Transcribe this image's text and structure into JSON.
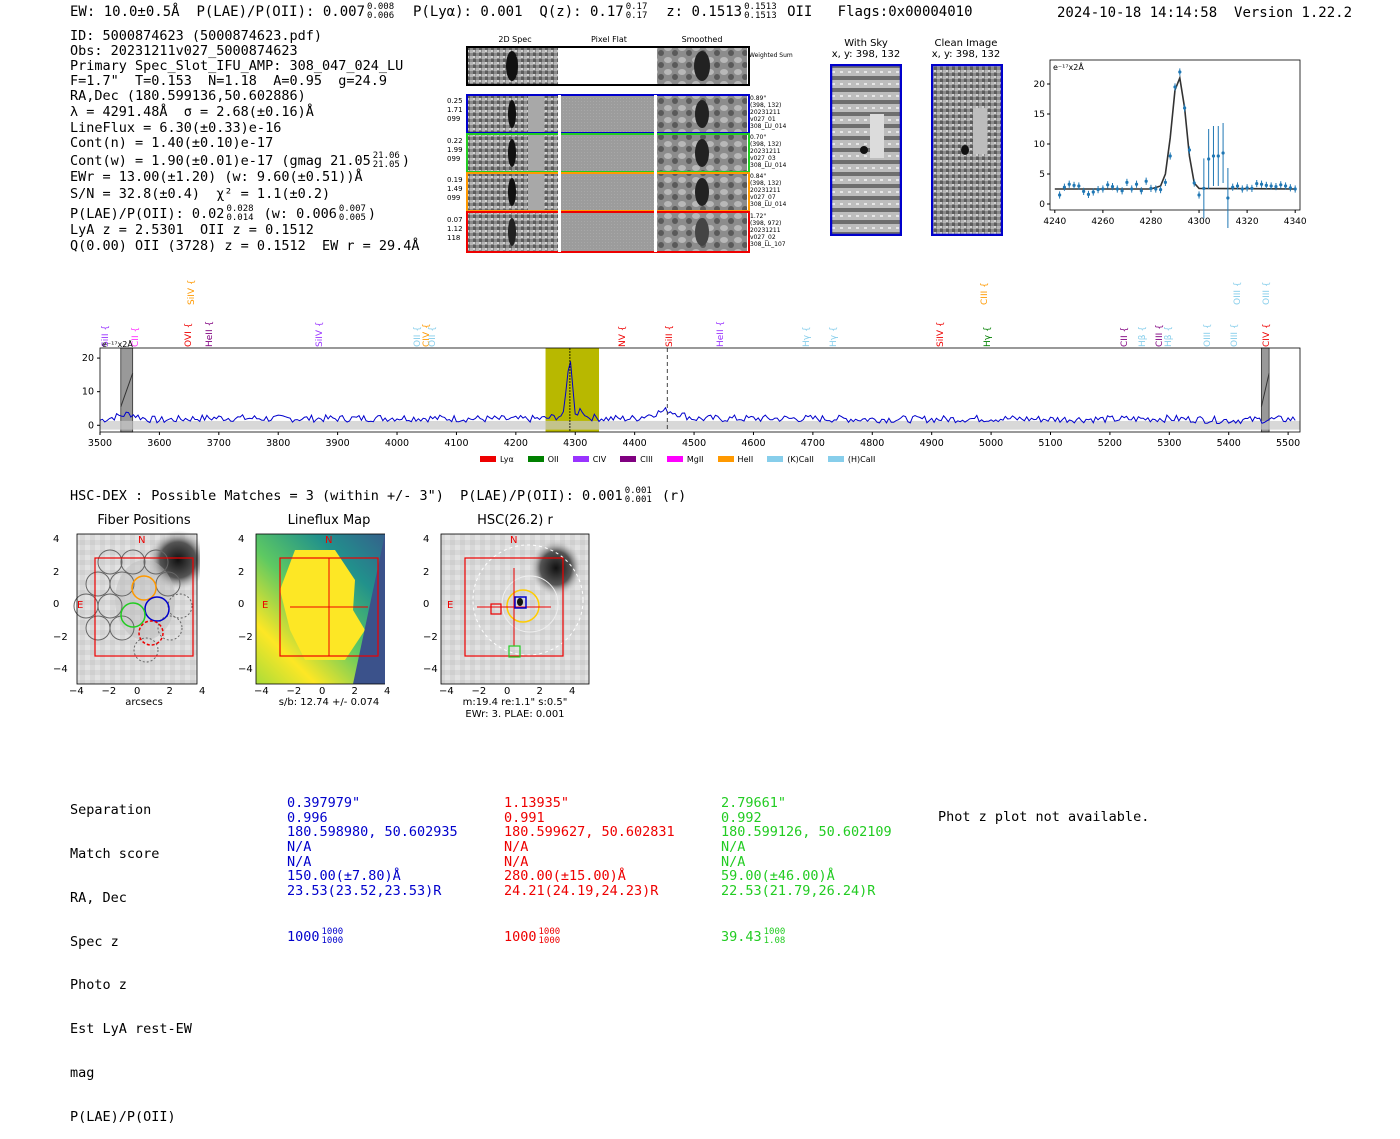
{
  "header": {
    "ew_label": "EW: 10.0±0.5Å",
    "plae_label": "P(LAE)/P(OII): 0.007",
    "plae_hi": "0.008",
    "plae_lo": "0.006",
    "plya_label": "P(Lyα): 0.001",
    "qz_label": "Q(z): 0.17",
    "qz_hi": "0.17",
    "qz_lo": "0.17",
    "z_label": "z: 0.1513",
    "z_hi": "0.1513",
    "z_lo": "0.1513",
    "z_line": "OII",
    "flags": "Flags:0x00004010",
    "datetime": "2024-10-18 14:14:58",
    "version": "Version 1.22.2"
  },
  "info": {
    "id": "ID: 5000874623 (5000874623.pdf)",
    "obs": "Obs: 20231211v027_5000874623",
    "primary": "Primary Spec_Slot_IFU_AMP: 308_047_024_LU",
    "fparams": "F=1.7\"  T=0.153  N=1.18  A=0.95  g=24.9",
    "radec": "RA,Dec (180.599136,50.602886)",
    "lambda": "λ = 4291.48Å  σ = 2.68(±0.16)Å",
    "lineflux": "LineFlux = 6.30(±0.33)e-16",
    "contn": "Cont(n) = 1.40(±0.10)e-17",
    "contw": "Cont(w) = 1.90(±0.01)e-17 (gmag 21.05",
    "contw_hi": "21.06",
    "contw_lo": "21.05",
    "contw_end": ")",
    "ewr": "EWr = 13.00(±1.20) (w: 9.60(±0.51))Å",
    "sn": "S/N = 32.8(±0.4)  χ² = 1.1(±0.2)",
    "plae": "P(LAE)/P(OII): 0.02",
    "plae_hi": "0.028",
    "plae_lo": "0.014",
    "plae_w": "(w: 0.006",
    "plae_w_hi": "0.007",
    "plae_w_lo": "0.005",
    "plae_end": ")",
    "lya": "LyA z = 2.5301  OII z = 0.1512",
    "q": "Q(0.00) OII (3728) z = 0.1512  EW r = 29.4Å"
  },
  "cutouts": {
    "col_titles": [
      "2D Spec",
      "Pixel Flat",
      "Smoothed"
    ],
    "weighted": "Weighted Sum",
    "rows": [
      {
        "left": [
          "0.25",
          "1.71",
          "099"
        ],
        "right": [
          "0.89\"",
          "(398, 132)",
          "20231211",
          "v027_01",
          "308_LU_014"
        ],
        "color": "#0000cc"
      },
      {
        "left": [
          "0.22",
          "1.99",
          "099"
        ],
        "right": [
          "0.70\"",
          "(398, 132)",
          "20231211",
          "v027_03",
          "308_LU_014"
        ],
        "color": "#22cc22"
      },
      {
        "left": [
          "0.19",
          "1.49",
          "099"
        ],
        "right": [
          "0.84\"",
          "(398, 132)",
          "20231211",
          "v027_07",
          "308_LU_014"
        ],
        "color": "#ff9900"
      },
      {
        "left": [
          "0.07",
          "1.12",
          "118"
        ],
        "right": [
          "1.72\"",
          "(398, 972)",
          "20231211",
          "v027_02",
          "308_LL_107"
        ],
        "color": "#ee0000"
      }
    ]
  },
  "sky_images": {
    "with_sky_title": "With Sky",
    "with_sky_coord": "x, y: 398, 132",
    "clean_title": "Clean Image",
    "clean_coord": "x, y: 398, 132"
  },
  "zoom_chart": {
    "unit_label": "e⁻¹⁷x2Å",
    "xticks": [
      "4240",
      "4260",
      "4280",
      "4300",
      "4320",
      "4340"
    ],
    "yticks": [
      "0",
      "5",
      "10",
      "15",
      "20"
    ]
  },
  "chart_data": [
    {
      "type": "scatter",
      "title": "",
      "xlabel": "",
      "ylabel": "e⁻¹⁷x2Å",
      "xlim": [
        4238,
        4342
      ],
      "ylim": [
        -1,
        24
      ],
      "series": [
        {
          "name": "data",
          "x": [
            4242,
            4244,
            4246,
            4248,
            4250,
            4252,
            4254,
            4256,
            4258,
            4260,
            4262,
            4264,
            4266,
            4268,
            4270,
            4272,
            4274,
            4276,
            4278,
            4280,
            4282,
            4284,
            4286,
            4288,
            4290,
            4292,
            4294,
            4296,
            4298,
            4300,
            4302,
            4304,
            4306,
            4308,
            4310,
            4312,
            4314,
            4316,
            4318,
            4320,
            4322,
            4324,
            4326,
            4328,
            4330,
            4332,
            4334,
            4336,
            4338,
            4340
          ],
          "y": [
            1.5,
            2.8,
            3.3,
            3.1,
            3.0,
            2.1,
            1.6,
            2.0,
            2.4,
            2.5,
            3.2,
            2.9,
            2.5,
            2.2,
            3.6,
            2.5,
            3.3,
            2.2,
            3.8,
            2.6,
            2.5,
            2.4,
            3.6,
            8.0,
            19.5,
            22.0,
            16.0,
            9.0,
            3.5,
            1.5,
            2.6,
            7.5,
            8.0,
            8.0,
            8.5,
            1.0,
            2.8,
            3.0,
            2.5,
            2.7,
            2.6,
            3.4,
            3.3,
            3.1,
            3.0,
            2.9,
            3.2,
            3.0,
            2.7,
            2.5
          ]
        },
        {
          "name": "fit",
          "x": [
            4240,
            4280,
            4284,
            4286,
            4288,
            4290,
            4292,
            4294,
            4296,
            4298,
            4300,
            4340
          ],
          "y": [
            2.5,
            2.5,
            3.0,
            5.0,
            11.0,
            19.0,
            21.0,
            16.0,
            8.0,
            3.5,
            2.6,
            2.5
          ]
        }
      ]
    },
    {
      "type": "line",
      "title": "",
      "xlabel": "",
      "ylabel": "e⁻¹⁷x2Å",
      "xlim": [
        3500,
        5520
      ],
      "ylim": [
        -2,
        23
      ],
      "x": [
        3500,
        3525,
        3550,
        3575,
        3600,
        3650,
        3700,
        3800,
        3900,
        4000,
        4100,
        4200,
        4250,
        4280,
        4291,
        4300,
        4310,
        4320,
        4350,
        4400,
        4455,
        4500,
        4600,
        4700,
        4800,
        4900,
        5000,
        5100,
        5200,
        5300,
        5400,
        5500
      ],
      "series": [
        {
          "name": "spectrum",
          "values": [
            1.5,
            2.5,
            3.5,
            2.0,
            1.5,
            2.0,
            2.2,
            2.0,
            2.0,
            2.2,
            2.0,
            1.8,
            2.0,
            3.0,
            21.0,
            3.0,
            5.0,
            2.5,
            2.0,
            2.0,
            4.5,
            2.0,
            2.0,
            2.0,
            1.8,
            1.8,
            2.0,
            1.8,
            1.8,
            2.0,
            1.5,
            1.8
          ]
        }
      ],
      "xticks": [
        "3500",
        "3600",
        "3700",
        "3800",
        "3900",
        "4000",
        "4100",
        "4200",
        "4300",
        "4400",
        "4500",
        "4600",
        "4700",
        "4800",
        "4900",
        "5000",
        "5100",
        "5200",
        "5300",
        "5400",
        "5500"
      ],
      "yticks": [
        "0",
        "10",
        "20"
      ],
      "highlight_range": [
        4250,
        4340
      ],
      "vline_solid": 4291,
      "vline_dashed": 4455,
      "masked_ranges": [
        [
          3535,
          3555
        ],
        [
          5455,
          5468
        ]
      ],
      "unit_label": "e⁻¹⁷x2Å"
    }
  ],
  "line_labels": [
    {
      "text": "SiII",
      "wl": 3510,
      "color": "#9933ff",
      "row": 0
    },
    {
      "text": "CII",
      "wl": 3560,
      "color": "#ff33ff",
      "row": 0
    },
    {
      "text": "SiIV",
      "wl": 3655,
      "color": "#ff9900",
      "row": 1
    },
    {
      "text": "OVI",
      "wl": 3650,
      "color": "#ee0000",
      "row": 0
    },
    {
      "text": "HeII",
      "wl": 3685,
      "color": "#800080",
      "row": 0
    },
    {
      "text": "SiIV",
      "wl": 3870,
      "color": "#9933ff",
      "row": 0
    },
    {
      "text": "OII",
      "wl": 4035,
      "color": "#87ceeb",
      "row": 0
    },
    {
      "text": "CIV",
      "wl": 4050,
      "color": "#ff9900",
      "row": 0
    },
    {
      "text": "OII",
      "wl": 4060,
      "color": "#87ceeb",
      "row": 0
    },
    {
      "text": "NV",
      "wl": 4380,
      "color": "#ee0000",
      "row": 0
    },
    {
      "text": "SiII",
      "wl": 4460,
      "color": "#ee0000",
      "row": 0
    },
    {
      "text": "HeII",
      "wl": 4545,
      "color": "#9933ff",
      "row": 0
    },
    {
      "text": "Hγ",
      "wl": 4690,
      "color": "#87ceeb",
      "row": 0
    },
    {
      "text": "Hγ",
      "wl": 4735,
      "color": "#87ceeb",
      "row": 0
    },
    {
      "text": "SiIV",
      "wl": 4915,
      "color": "#ee0000",
      "row": 0
    },
    {
      "text": "CIII",
      "wl": 4990,
      "color": "#ff9900",
      "row": 1
    },
    {
      "text": "Hγ",
      "wl": 4995,
      "color": "#008000",
      "row": 0
    },
    {
      "text": "CII",
      "wl": 5225,
      "color": "#800080",
      "row": 0
    },
    {
      "text": "Hβ",
      "wl": 5255,
      "color": "#87ceeb",
      "row": 0
    },
    {
      "text": "CIII",
      "wl": 5285,
      "color": "#800080",
      "row": 0
    },
    {
      "text": "Hβ",
      "wl": 5300,
      "color": "#87ceeb",
      "row": 0
    },
    {
      "text": "OIII",
      "wl": 5365,
      "color": "#87ceeb",
      "row": 0
    },
    {
      "text": "OIII",
      "wl": 5415,
      "color": "#87ceeb",
      "row": 1
    },
    {
      "text": "OIII",
      "wl": 5410,
      "color": "#87ceeb",
      "row": 0
    },
    {
      "text": "OIII",
      "wl": 5465,
      "color": "#87ceeb",
      "row": 1
    },
    {
      "text": "CIV",
      "wl": 5465,
      "color": "#ee0000",
      "row": 0
    }
  ],
  "legend": [
    {
      "label": "Lyα",
      "color": "#ee0000"
    },
    {
      "label": "OII",
      "color": "#008000"
    },
    {
      "label": "CIV",
      "color": "#9933ff"
    },
    {
      "label": "CIII",
      "color": "#800080"
    },
    {
      "label": "MgII",
      "color": "#ff00ff"
    },
    {
      "label": "HeII",
      "color": "#ff9900"
    },
    {
      "label": "(K)CaII",
      "color": "#87ceeb"
    },
    {
      "label": "(H)CaII",
      "color": "#87ceeb"
    }
  ],
  "hsc": {
    "title": "HSC-DEX : Possible Matches = 3 (within +/- 3\")  P(LAE)/P(OII): 0.001",
    "plae_hi": "0.001",
    "plae_lo": "0.001",
    "suffix": "(r)",
    "panels": [
      {
        "title": "Fiber Positions",
        "caption": "arcsecs"
      },
      {
        "title": "Lineflux Map",
        "caption": "s/b: 12.74 +/- 0.074"
      },
      {
        "title": "HSC(26.2) r",
        "caption": "m:19.4  re:1.1\"  s:0.5\"",
        "caption2": "EWr: 3. PLAE: 0.001"
      }
    ],
    "axis_ticks": [
      "−4",
      "−2",
      "0",
      "2",
      "4"
    ],
    "n_label": "N",
    "e_label": "E"
  },
  "table": {
    "labels": [
      "Separation",
      "Match score",
      "RA, Dec",
      "Spec z",
      "Photo z",
      "Est LyA rest-EW",
      "mag",
      "P(LAE)/P(OII)"
    ],
    "columns": [
      {
        "color": "#0000cc",
        "values": [
          "0.397979\"",
          "0.996",
          "180.598980, 50.602935",
          "N/A",
          "N/A",
          "150.00(±7.80)Å",
          "23.53(23.52,23.53)R",
          "1000"
        ],
        "p_hi": "1000",
        "p_lo": "1000"
      },
      {
        "color": "#ee0000",
        "values": [
          "1.13935\"",
          "0.991",
          "180.599627, 50.602831",
          "N/A",
          "N/A",
          "280.00(±15.00)Å",
          "24.21(24.19,24.23)R",
          "1000"
        ],
        "p_hi": "1000",
        "p_lo": "1000"
      },
      {
        "color": "#22cc22",
        "values": [
          "2.79661\"",
          "0.992",
          "180.599126, 50.602109",
          "N/A",
          "N/A",
          "59.00(±46.00)Å",
          "22.53(21.79,26.24)R",
          "39.43"
        ],
        "p_hi": "1000",
        "p_lo": "1.08"
      }
    ],
    "photz_note": "Phot z plot not available."
  }
}
